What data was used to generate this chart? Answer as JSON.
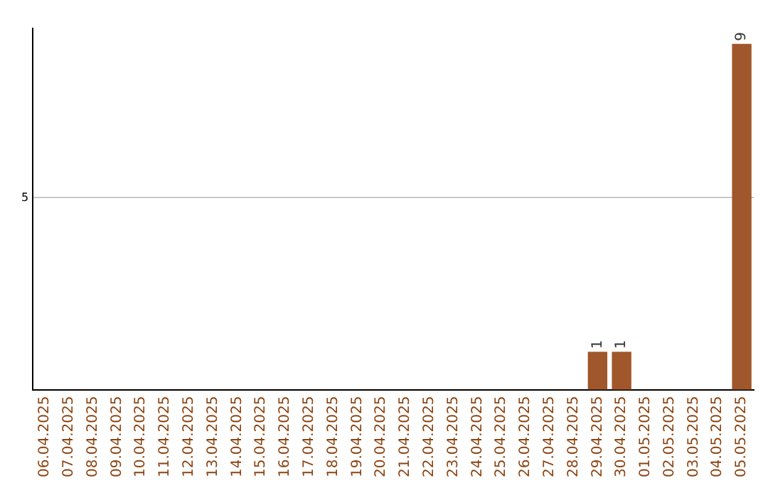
{
  "chart_data": {
    "type": "bar",
    "categories": [
      "06.04.2025",
      "07.04.2025",
      "08.04.2025",
      "09.04.2025",
      "10.04.2025",
      "11.04.2025",
      "12.04.2025",
      "13.04.2025",
      "14.04.2025",
      "15.04.2025",
      "16.04.2025",
      "17.04.2025",
      "18.04.2025",
      "19.04.2025",
      "20.04.2025",
      "21.04.2025",
      "22.04.2025",
      "23.04.2025",
      "24.04.2025",
      "25.04.2025",
      "26.04.2025",
      "27.04.2025",
      "28.04.2025",
      "29.04.2025",
      "30.04.2025",
      "01.05.2025",
      "02.05.2025",
      "03.05.2025",
      "04.05.2025",
      "05.05.2025"
    ],
    "values": [
      null,
      null,
      null,
      null,
      null,
      null,
      null,
      null,
      null,
      null,
      null,
      null,
      null,
      null,
      null,
      null,
      null,
      null,
      null,
      null,
      null,
      null,
      null,
      1,
      1,
      null,
      null,
      null,
      null,
      9
    ],
    "data_labels": true,
    "color": "#a0572b",
    "ylim": [
      0,
      9.4
    ],
    "yticks": [
      {
        "value": 0,
        "label": null
      },
      5
    ],
    "grid": "y",
    "legend": false
  }
}
